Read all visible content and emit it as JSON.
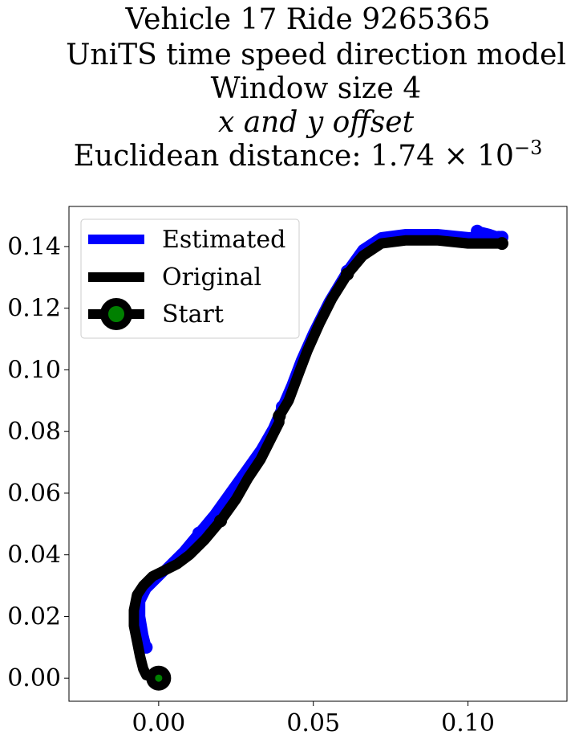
{
  "chart_data": {
    "type": "line",
    "title_lines": [
      "Vehicle 17 Ride 9265365",
      "UniTS time speed direction model",
      "Window size 4",
      "x and y offset",
      "Euclidean distance: 1.74 × 10"
    ],
    "title_exponent": "−3",
    "xlabel": "",
    "ylabel": "",
    "xlim": [
      -0.029,
      0.132
    ],
    "ylim": [
      -0.0075,
      0.153
    ],
    "x_ticks": [
      0.0,
      0.05,
      0.1
    ],
    "x_tick_labels": [
      "0.00",
      "0.05",
      "0.10"
    ],
    "y_ticks": [
      0.0,
      0.02,
      0.04,
      0.06,
      0.08,
      0.1,
      0.12,
      0.14
    ],
    "y_tick_labels": [
      "0.00",
      "0.02",
      "0.04",
      "0.06",
      "0.08",
      "0.10",
      "0.12",
      "0.14"
    ],
    "grid": false,
    "legend_placement": "upper-left",
    "legend": [
      {
        "label": "Estimated",
        "color": "#0000ff"
      },
      {
        "label": "Original",
        "color": "#000000"
      },
      {
        "label": "Start",
        "color": "#000000",
        "marker_color": "#008000"
      }
    ],
    "series": [
      {
        "name": "Estimated",
        "color": "#0000ff",
        "segments": [
          [
            [
              -0.004,
              0.01
            ],
            [
              -0.005,
              0.014
            ],
            [
              -0.006,
              0.02
            ],
            [
              -0.006,
              0.025
            ],
            [
              -0.004,
              0.029
            ],
            [
              -0.001,
              0.032
            ],
            [
              0.003,
              0.036
            ],
            [
              0.008,
              0.041
            ],
            [
              0.013,
              0.047
            ]
          ],
          [
            [
              0.013,
              0.047
            ],
            [
              0.018,
              0.053
            ],
            [
              0.023,
              0.06
            ],
            [
              0.028,
              0.067
            ],
            [
              0.033,
              0.074
            ],
            [
              0.037,
              0.081
            ],
            [
              0.04,
              0.088
            ]
          ],
          [
            [
              0.04,
              0.088
            ],
            [
              0.043,
              0.095
            ],
            [
              0.046,
              0.103
            ],
            [
              0.05,
              0.112
            ],
            [
              0.055,
              0.122
            ],
            [
              0.061,
              0.132
            ]
          ],
          [
            [
              0.061,
              0.132
            ],
            [
              0.066,
              0.139
            ],
            [
              0.072,
              0.143
            ],
            [
              0.08,
              0.144
            ],
            [
              0.09,
              0.144
            ],
            [
              0.1,
              0.143
            ],
            [
              0.106,
              0.143
            ],
            [
              0.111,
              0.143
            ]
          ],
          [
            [
              0.103,
              0.145
            ],
            [
              0.107,
              0.144
            ],
            [
              0.11,
              0.143
            ]
          ]
        ]
      },
      {
        "name": "Original",
        "color": "#000000",
        "segments": [
          [
            [
              0.0,
              0.0
            ],
            [
              -0.004,
              0.001
            ],
            [
              -0.005,
              0.003
            ],
            [
              -0.006,
              0.007
            ],
            [
              -0.007,
              0.012
            ],
            [
              -0.008,
              0.017
            ],
            [
              -0.008,
              0.022
            ],
            [
              -0.007,
              0.027
            ],
            [
              -0.005,
              0.03
            ],
            [
              -0.002,
              0.033
            ],
            [
              0.002,
              0.035
            ],
            [
              0.006,
              0.037
            ],
            [
              0.01,
              0.04
            ],
            [
              0.015,
              0.045
            ],
            [
              0.02,
              0.051
            ]
          ],
          [
            [
              0.02,
              0.051
            ],
            [
              0.025,
              0.058
            ],
            [
              0.029,
              0.065
            ],
            [
              0.033,
              0.071
            ],
            [
              0.036,
              0.077
            ],
            [
              0.039,
              0.083
            ],
            [
              0.039,
              0.085
            ]
          ],
          [
            [
              0.039,
              0.085
            ],
            [
              0.042,
              0.09
            ],
            [
              0.045,
              0.098
            ],
            [
              0.048,
              0.106
            ],
            [
              0.052,
              0.115
            ],
            [
              0.056,
              0.123
            ],
            [
              0.061,
              0.131
            ]
          ],
          [
            [
              0.061,
              0.131
            ],
            [
              0.066,
              0.137
            ],
            [
              0.072,
              0.141
            ],
            [
              0.08,
              0.142
            ],
            [
              0.09,
              0.142
            ],
            [
              0.1,
              0.141
            ],
            [
              0.106,
              0.141
            ],
            [
              0.111,
              0.141
            ]
          ]
        ]
      }
    ],
    "start_point": {
      "x": 0.0,
      "y": 0.0
    }
  }
}
